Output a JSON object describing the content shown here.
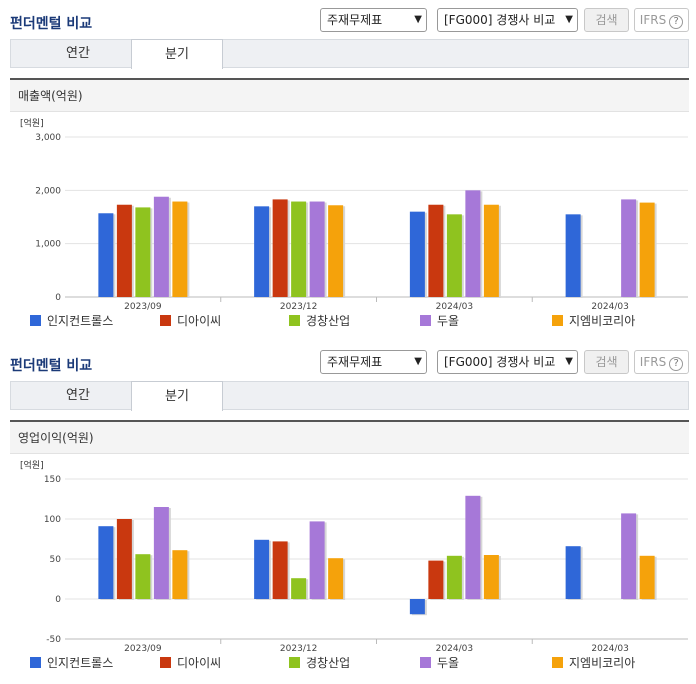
{
  "sections": [
    {
      "title": "펀더멘털 비교",
      "select1": "주재무제표",
      "select2": "[FG000] 경쟁사 비교",
      "search_label": "검색",
      "ifrs_label": "IFRS",
      "ifrs_help": "?",
      "tabs": [
        "연간",
        "분기"
      ],
      "active_tab": "분기",
      "panel_title": "매출액(억원)"
    },
    {
      "title": "펀더멘털 비교",
      "select1": "주재무제표",
      "select2": "[FG000] 경쟁사 비교",
      "search_label": "검색",
      "ifrs_label": "IFRS",
      "ifrs_help": "?",
      "tabs": [
        "연간",
        "분기"
      ],
      "active_tab": "분기",
      "panel_title": "영업이익(억원)"
    }
  ],
  "colors": {
    "series": [
      "#2f67d8",
      "#c9380f",
      "#8fc31f",
      "#a678d8",
      "#f5a20b"
    ]
  },
  "icons": {
    "dropdown": "chevron-down-icon",
    "help": "question-circle-icon"
  },
  "chart_data": [
    {
      "type": "bar",
      "unit_label": "[억원]",
      "categories": [
        "2023/09",
        "2023/12",
        "2024/03",
        "2024/03"
      ],
      "yticks": [
        0,
        1000,
        2000,
        3000
      ],
      "ytick_labels": [
        "0",
        "1,000",
        "2,000",
        "3,000"
      ],
      "ylim": [
        0,
        3000
      ],
      "series": [
        {
          "name": "인지컨트롤스",
          "values": [
            1570,
            1700,
            1600,
            1550
          ]
        },
        {
          "name": "디아이씨",
          "values": [
            1730,
            1830,
            1730,
            null
          ]
        },
        {
          "name": "경창산업",
          "values": [
            1680,
            1790,
            1550,
            null
          ]
        },
        {
          "name": "두올",
          "values": [
            1880,
            1790,
            2000,
            1830
          ]
        },
        {
          "name": "지엠비코리아",
          "values": [
            1790,
            1720,
            1730,
            1770
          ]
        }
      ]
    },
    {
      "type": "bar",
      "unit_label": "[억원]",
      "categories": [
        "2023/09",
        "2023/12",
        "2024/03",
        "2024/03"
      ],
      "yticks": [
        -50,
        0,
        50,
        100,
        150
      ],
      "ytick_labels": [
        "-50",
        "0",
        "50",
        "100",
        "150"
      ],
      "ylim": [
        -50,
        150
      ],
      "series": [
        {
          "name": "인지컨트롤스",
          "values": [
            91,
            74,
            -19,
            66
          ]
        },
        {
          "name": "디아이씨",
          "values": [
            100,
            72,
            48,
            null
          ]
        },
        {
          "name": "경창산업",
          "values": [
            56,
            26,
            54,
            null
          ]
        },
        {
          "name": "두올",
          "values": [
            115,
            97,
            129,
            107
          ]
        },
        {
          "name": "지엠비코리아",
          "values": [
            61,
            51,
            55,
            54
          ]
        }
      ]
    }
  ]
}
